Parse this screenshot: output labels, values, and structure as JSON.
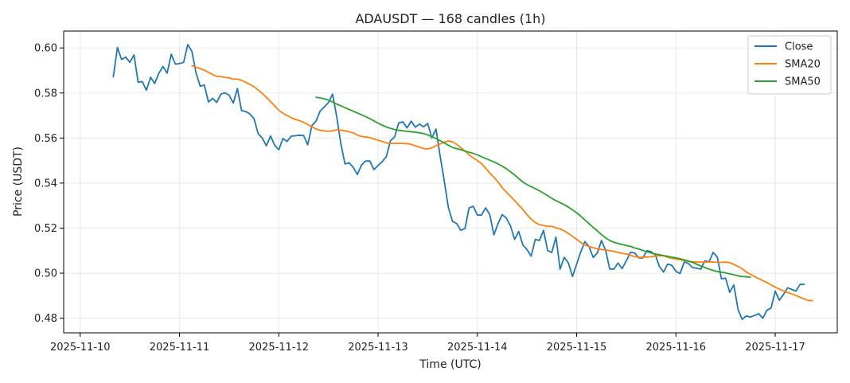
{
  "chart_data": {
    "type": "line",
    "title": "ADAUSDT — 168 candles (1h)",
    "xlabel": "Time (UTC)",
    "ylabel": "Price (USDT)",
    "x_start": "2025-11-10T08:00:00Z",
    "x_step_hours": 1,
    "xlim": [
      "2025-11-09T20:00:00Z",
      "2025-11-17T15:00:00Z"
    ],
    "ylim": [
      0.4735,
      0.6075
    ],
    "x_ticks": [
      "2025-11-10",
      "2025-11-11",
      "2025-11-12",
      "2025-11-13",
      "2025-11-14",
      "2025-11-15",
      "2025-11-16",
      "2025-11-17"
    ],
    "y_ticks": [
      0.48,
      0.5,
      0.52,
      0.54,
      0.56,
      0.58,
      0.6
    ],
    "y_tick_labels": [
      "0.48",
      "0.50",
      "0.52",
      "0.54",
      "0.56",
      "0.58",
      "0.60"
    ],
    "grid": true,
    "legend_position": "top-right",
    "series": [
      {
        "name": "Close",
        "color": "#1f77b4",
        "start_index": 0,
        "values": [
          0.5872,
          0.6002,
          0.5949,
          0.5959,
          0.5936,
          0.5969,
          0.5848,
          0.5851,
          0.5812,
          0.587,
          0.5842,
          0.5887,
          0.5918,
          0.5888,
          0.5972,
          0.5928,
          0.5931,
          0.5936,
          0.6015,
          0.5985,
          0.5889,
          0.583,
          0.5835,
          0.576,
          0.5776,
          0.5758,
          0.5795,
          0.5801,
          0.579,
          0.5755,
          0.582,
          0.5722,
          0.5718,
          0.5707,
          0.5687,
          0.562,
          0.56,
          0.5565,
          0.5609,
          0.5568,
          0.5548,
          0.5598,
          0.5585,
          0.5608,
          0.561,
          0.5612,
          0.5611,
          0.557,
          0.5655,
          0.5675,
          0.572,
          0.5738,
          0.5757,
          0.5795,
          0.5695,
          0.5575,
          0.5485,
          0.549,
          0.547,
          0.5438,
          0.548,
          0.5498,
          0.5498,
          0.546,
          0.5478,
          0.5495,
          0.5518,
          0.5588,
          0.5605,
          0.5667,
          0.5672,
          0.5645,
          0.5675,
          0.5648,
          0.5662,
          0.565,
          0.5665,
          0.56,
          0.564,
          0.552,
          0.541,
          0.529,
          0.523,
          0.522,
          0.519,
          0.5198,
          0.529,
          0.5297,
          0.5258,
          0.5258,
          0.529,
          0.526,
          0.517,
          0.522,
          0.526,
          0.5245,
          0.521,
          0.515,
          0.5185,
          0.5125,
          0.5105,
          0.5075,
          0.515,
          0.5145,
          0.519,
          0.51,
          0.5092,
          0.516,
          0.5018,
          0.507,
          0.5045,
          0.4985,
          0.504,
          0.5095,
          0.514,
          0.5118,
          0.507,
          0.509,
          0.5145,
          0.5102,
          0.5018,
          0.5018,
          0.5045,
          0.502,
          0.5055,
          0.5092,
          0.509,
          0.5068,
          0.5068,
          0.51,
          0.5095,
          0.5082,
          0.503,
          0.5005,
          0.504,
          0.5035,
          0.5008,
          0.4998,
          0.505,
          0.5043,
          0.5025,
          0.5022,
          0.5018,
          0.5055,
          0.505,
          0.5092,
          0.5072,
          0.4975,
          0.4978,
          0.4915,
          0.4948,
          0.484,
          0.4795,
          0.481,
          0.4805,
          0.4812,
          0.482,
          0.48,
          0.4835,
          0.4845,
          0.492,
          0.488,
          0.4905,
          0.4935,
          0.4928,
          0.492,
          0.495,
          0.495
        ]
      },
      {
        "name": "SMA20",
        "color": "#ff7f0e",
        "start_index": 19,
        "values": [
          0.5921,
          0.5915,
          0.5908,
          0.5901,
          0.5892,
          0.5882,
          0.5874,
          0.5873,
          0.5869,
          0.5867,
          0.5861,
          0.5862,
          0.5856,
          0.5848,
          0.5838,
          0.5828,
          0.5813,
          0.5798,
          0.5781,
          0.5762,
          0.5743,
          0.5723,
          0.571,
          0.57,
          0.569,
          0.5683,
          0.5677,
          0.567,
          0.566,
          0.565,
          0.564,
          0.5634,
          0.5632,
          0.563,
          0.5632,
          0.5636,
          0.5635,
          0.5632,
          0.5628,
          0.5623,
          0.5613,
          0.5607,
          0.5605,
          0.5602,
          0.5596,
          0.559,
          0.5585,
          0.5578,
          0.5576,
          0.5576,
          0.5577,
          0.5576,
          0.5575,
          0.5572,
          0.5565,
          0.556,
          0.5553,
          0.5552,
          0.5556,
          0.5566,
          0.5573,
          0.5582,
          0.5587,
          0.5583,
          0.5572,
          0.5557,
          0.5542,
          0.5526,
          0.5512,
          0.55,
          0.5486,
          0.5466,
          0.5445,
          0.5426,
          0.5405,
          0.538,
          0.536,
          0.5341,
          0.5323,
          0.5302,
          0.5283,
          0.526,
          0.524,
          0.5225,
          0.5215,
          0.5212,
          0.5208,
          0.5208,
          0.5202,
          0.5196,
          0.5188,
          0.5176,
          0.5164,
          0.515,
          0.5136,
          0.5125,
          0.5118,
          0.5113,
          0.5108,
          0.5105,
          0.5103,
          0.51,
          0.5097,
          0.5092,
          0.5088,
          0.5085,
          0.508,
          0.5073,
          0.5071,
          0.5071,
          0.5072,
          0.5073,
          0.5076,
          0.5077,
          0.5077,
          0.5071,
          0.5066,
          0.5063,
          0.506,
          0.5056,
          0.5052,
          0.505,
          0.505,
          0.5049,
          0.5049,
          0.5049,
          0.505,
          0.5048,
          0.5048,
          0.5049,
          0.5047,
          0.5039,
          0.503,
          0.502,
          0.5005,
          0.4995,
          0.4985,
          0.4976,
          0.4967,
          0.4958,
          0.4948,
          0.4938,
          0.4929,
          0.4921,
          0.4914,
          0.4908,
          0.4901,
          0.4893,
          0.4885,
          0.4879,
          0.4878
        ]
      },
      {
        "name": "SMA50",
        "color": "#2ca02c",
        "start_index": 49,
        "values": [
          0.5781,
          0.5778,
          0.5774,
          0.5768,
          0.576,
          0.5751,
          0.5743,
          0.5735,
          0.5727,
          0.5719,
          0.5711,
          0.5703,
          0.5695,
          0.5686,
          0.5676,
          0.5666,
          0.5657,
          0.5649,
          0.5643,
          0.5638,
          0.5634,
          0.5632,
          0.563,
          0.5628,
          0.5626,
          0.5623,
          0.562,
          0.5614,
          0.5606,
          0.5598,
          0.5588,
          0.5578,
          0.5568,
          0.5558,
          0.5553,
          0.5548,
          0.5542,
          0.5537,
          0.5532,
          0.5525,
          0.5517,
          0.5509,
          0.5502,
          0.5494,
          0.5485,
          0.5475,
          0.5464,
          0.545,
          0.5436,
          0.542,
          0.5405,
          0.5393,
          0.5384,
          0.5375,
          0.5366,
          0.5355,
          0.5344,
          0.5332,
          0.5322,
          0.5313,
          0.5304,
          0.5293,
          0.5281,
          0.5268,
          0.5253,
          0.5236,
          0.522,
          0.5203,
          0.5188,
          0.5171,
          0.5157,
          0.5145,
          0.5137,
          0.5132,
          0.5127,
          0.5123,
          0.5119,
          0.5112,
          0.5107,
          0.5101,
          0.5095,
          0.509,
          0.5085,
          0.5082,
          0.5078,
          0.5075,
          0.5071,
          0.5068,
          0.5064,
          0.5059,
          0.5054,
          0.5048,
          0.504,
          0.5032,
          0.5025,
          0.5018,
          0.5012,
          0.5007,
          0.5004,
          0.5001,
          0.4997,
          0.4993,
          0.4988,
          0.4985,
          0.4984,
          0.4982
        ]
      }
    ]
  }
}
